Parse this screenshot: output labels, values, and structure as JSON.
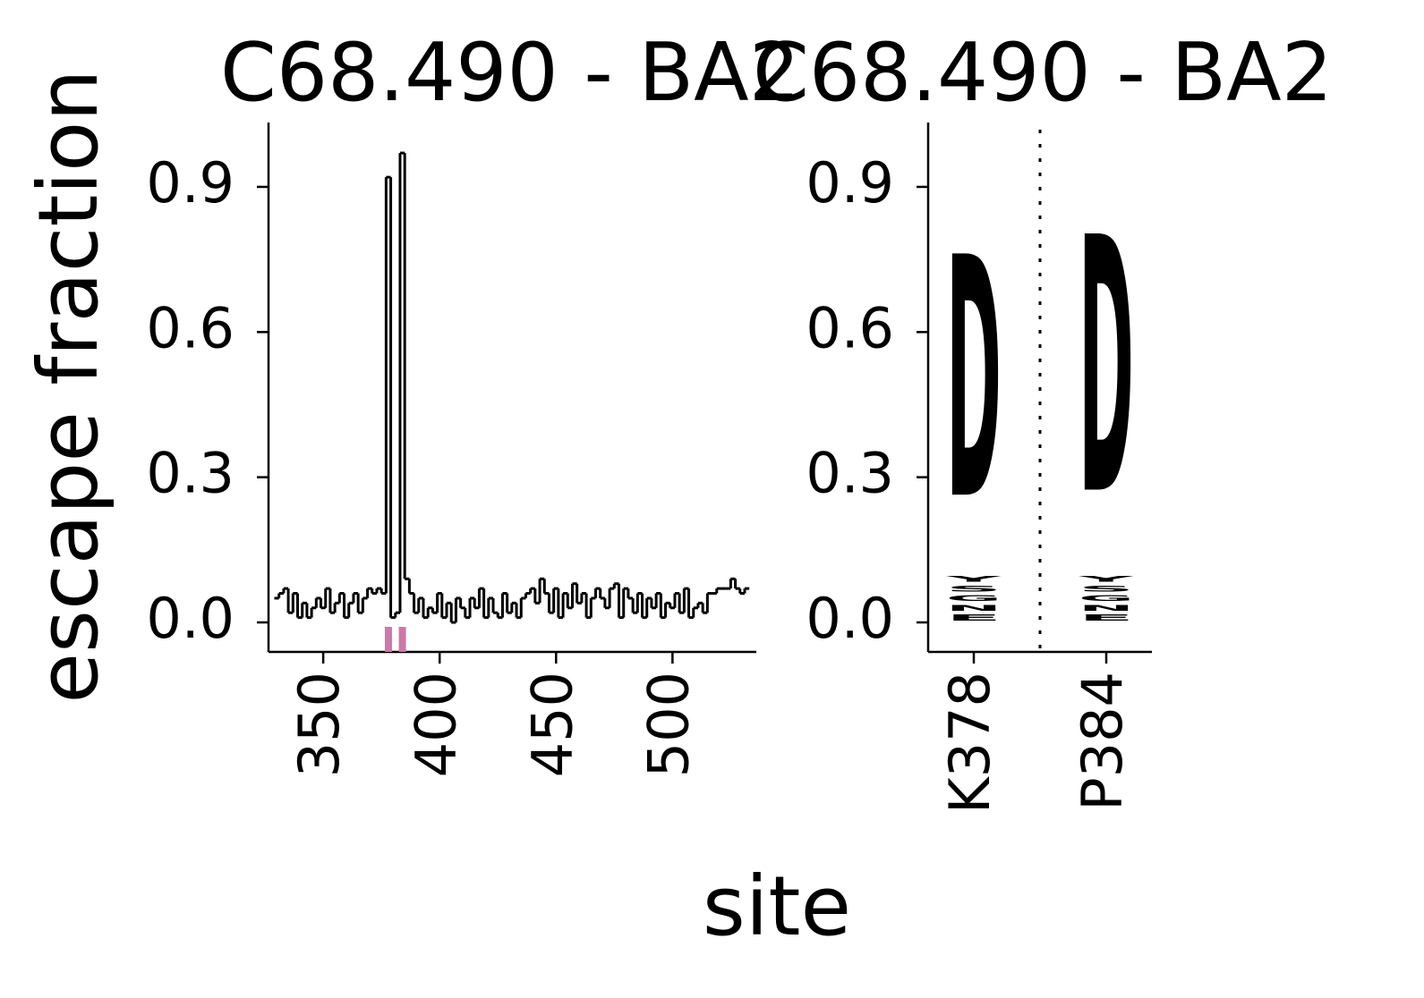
{
  "chart_data": [
    {
      "type": "step",
      "title": "C68.490 - BA2",
      "xlabel": "site",
      "ylabel": "escape fraction",
      "x": [
        330,
        332,
        334,
        336,
        338,
        340,
        342,
        344,
        346,
        348,
        350,
        352,
        354,
        356,
        358,
        360,
        362,
        364,
        366,
        368,
        370,
        372,
        374,
        376,
        378,
        380,
        382,
        384,
        386,
        388,
        390,
        392,
        394,
        396,
        398,
        400,
        402,
        404,
        406,
        408,
        410,
        412,
        414,
        416,
        418,
        420,
        422,
        424,
        426,
        428,
        430,
        432,
        434,
        436,
        438,
        440,
        442,
        444,
        446,
        448,
        450,
        452,
        454,
        456,
        458,
        460,
        462,
        464,
        466,
        468,
        470,
        472,
        474,
        476,
        478,
        480,
        482,
        484,
        486,
        488,
        490,
        492,
        494,
        496,
        498,
        500,
        502,
        504,
        506,
        508,
        510,
        512,
        514,
        516,
        518,
        520,
        522,
        524,
        526,
        528,
        530,
        532
      ],
      "series": [
        {
          "color": "#000000",
          "values": [
            0.05,
            0.06,
            0.07,
            0.02,
            0.06,
            0.01,
            0.04,
            0.01,
            0.03,
            0.05,
            0.03,
            0.07,
            0.02,
            0.04,
            0.06,
            0.01,
            0.04,
            0.06,
            0.02,
            0.05,
            0.07,
            0.06,
            0.07,
            0.06,
            0.92,
            0.01,
            0.02,
            0.97,
            0.09,
            0.06,
            0.02,
            0.05,
            0.01,
            0.03,
            0.02,
            0.06,
            0.01,
            0.04,
            0.0,
            0.05,
            0.03,
            0.01,
            0.05,
            0.03,
            0.07,
            0.01,
            0.05,
            0.02,
            0.01,
            0.06,
            0.02,
            0.04,
            0.01,
            0.05,
            0.06,
            0.07,
            0.04,
            0.09,
            0.06,
            0.02,
            0.07,
            0.01,
            0.06,
            0.03,
            0.08,
            0.04,
            0.06,
            0.01,
            0.05,
            0.07,
            0.05,
            0.03,
            0.07,
            0.08,
            0.01,
            0.07,
            0.05,
            0.02,
            0.06,
            0.01,
            0.05,
            0.03,
            0.06,
            0.01,
            0.04,
            0.03,
            0.06,
            0.02,
            0.07,
            0.01,
            0.03,
            0.04,
            0.02,
            0.06,
            0.06,
            0.07,
            0.07,
            0.07,
            0.09,
            0.07,
            0.06,
            0.07
          ]
        }
      ],
      "highlight_sites": [
        378,
        384
      ],
      "highlight_color": "#cc79a7",
      "xlim": [
        326.5,
        536
      ],
      "xticks": [
        350,
        400,
        450,
        500
      ],
      "ylim": [
        -0.061,
        1.033
      ],
      "yticks": [
        {
          "value": 0,
          "label": "0.0"
        },
        0.3,
        0.6,
        0.9
      ]
    },
    {
      "type": "logo",
      "title": "C68.490 - BA2",
      "categories": [
        "K378",
        "P384"
      ],
      "series": [
        {
          "name": "E",
          "color": "#e69f00",
          "values": [
            0.02,
            0.02
          ]
        },
        {
          "name": "N",
          "color": "#e69f00",
          "values": [
            0.02,
            0.02
          ]
        },
        {
          "name": "G",
          "color": "#e69f00",
          "values": [
            0.02,
            0.02
          ]
        },
        {
          "name": "S",
          "color": "#e69f00",
          "values": [
            0.02,
            0.02
          ]
        },
        {
          "name": "Y",
          "color": "#e69f00",
          "values": [
            0.02,
            0.02
          ]
        },
        {
          "name": "D",
          "color": "#e69f00",
          "values": [
            0.8,
            0.85
          ]
        }
      ],
      "ylim": [
        -0.061,
        1.033
      ],
      "yticks": [
        {
          "value": 0,
          "label": "0.0"
        },
        0.3,
        0.6,
        0.9
      ]
    }
  ]
}
